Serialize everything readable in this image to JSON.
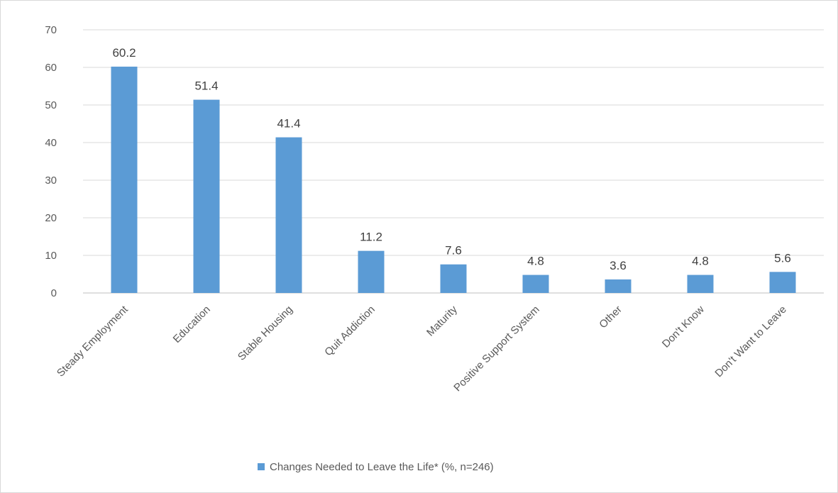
{
  "chart_data": {
    "type": "bar",
    "categories": [
      "Steady Employment",
      "Education",
      "Stable Housing",
      "Quit Addiction",
      "Maturity",
      "Positive Support System",
      "Other",
      "Don't Know",
      "Don't Want to Leave"
    ],
    "series": [
      {
        "name": "Changes Needed to Leave the Life* (%, n=246)",
        "values": [
          60.2,
          51.4,
          41.4,
          11.2,
          7.6,
          4.8,
          3.6,
          4.8,
          5.6
        ],
        "color": "#5b9bd5"
      }
    ],
    "ylim": [
      0,
      70
    ],
    "yticks": [
      0,
      10,
      20,
      30,
      40,
      50,
      60,
      70
    ],
    "grid": true,
    "legend_position": "bottom",
    "data_labels": [
      "60.2",
      "51.4",
      "41.4",
      "11.2",
      "7.6",
      "4.8",
      "3.6",
      "4.8",
      "5.6"
    ]
  }
}
